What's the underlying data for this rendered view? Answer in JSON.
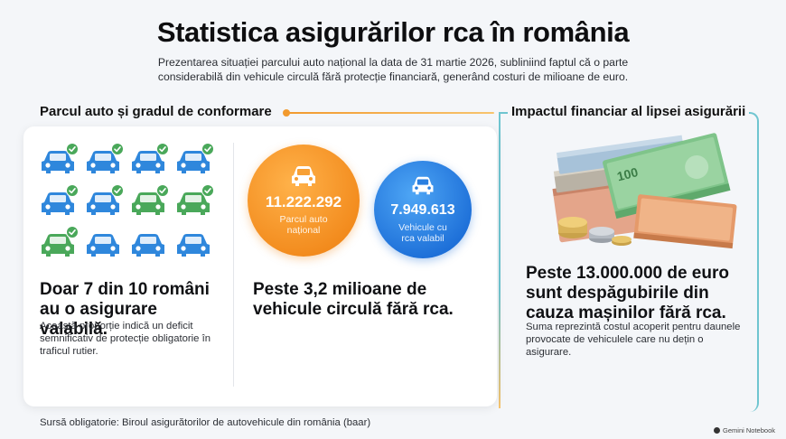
{
  "header": {
    "title": "Statistica asigurărilor rca în românia",
    "subtitle": "Prezentarea situației parcului auto național la data de 31 martie 2026, subliniind faptul că o parte considerabilă din vehicule circulă fără protecție financiară, generând costuri de milioane de euro."
  },
  "left_section": {
    "heading": "Parcul auto și gradul de conformare",
    "compliance": {
      "insured_cars": 7,
      "total_cars": 10,
      "headline": "Doar 7 din 10 români au o asigurare valabilă.",
      "description": "Această proporție indică un deficit semnificativ de protecție obligatorie în traficul rutier."
    },
    "fleet": {
      "national_total": "11.222.292",
      "national_label": "Parcul auto național",
      "insured_total": "7.949.613",
      "insured_label": "Vehicule cu rca valabil",
      "headline": "Peste 3,2 milioane de vehicule circulă fără rca."
    }
  },
  "right_section": {
    "heading": "Impactul financiar al lipsei asigurării",
    "headline": "Peste 13.000.000 de euro sunt despăgubirile din cauza mașinilor fără rca.",
    "description": "Suma reprezintă costul acoperit pentru daunele provocate de vehiculele care nu dețin o asigurare."
  },
  "footer": {
    "source": "Sursă obligatorie: Biroul asigurătorilor de autovehicule din românia (baar)",
    "brand": "Gemini Notebook"
  },
  "colors": {
    "blue_car": "#2f87dc",
    "green_car": "#4aa85a",
    "check": "#4aa85a",
    "orange": "#f28a1c",
    "blue": "#1d6fd8",
    "teal_frame": "#6fc5d0"
  },
  "icons": {
    "car": "car-icon",
    "check": "check-badge-icon",
    "money": "money-stack-icon"
  }
}
